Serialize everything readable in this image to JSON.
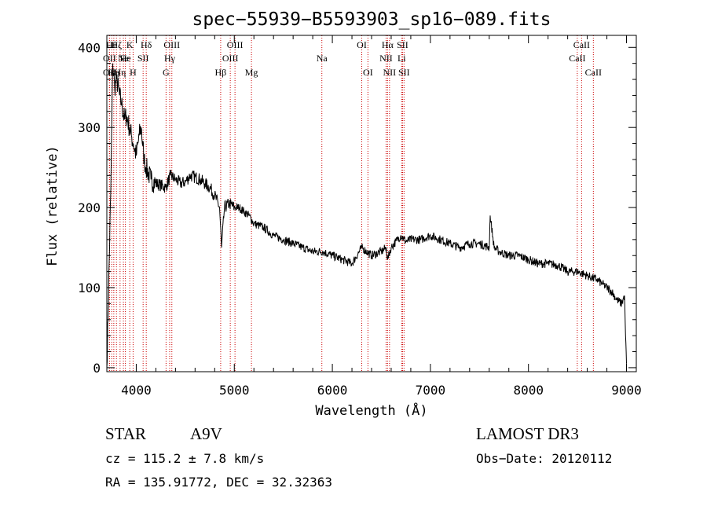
{
  "chart_data": {
    "type": "line",
    "title": "spec−55939−B5593903_sp16−089.fits",
    "xlabel": "Wavelength (Å)",
    "ylabel": "Flux (relative)",
    "xlim": [
      3700,
      9100
    ],
    "ylim": [
      -5,
      415
    ],
    "x_ticks": [
      4000,
      5000,
      6000,
      7000,
      8000,
      9000
    ],
    "y_ticks": [
      0,
      100,
      200,
      300,
      400
    ],
    "series": [
      {
        "name": "spectrum",
        "x": [
          3700,
          3740,
          3760,
          3780,
          3800,
          3830,
          3850,
          3880,
          3900,
          3930,
          3950,
          3970,
          4000,
          4030,
          4050,
          4080,
          4100,
          4150,
          4200,
          4250,
          4300,
          4350,
          4400,
          4450,
          4500,
          4550,
          4600,
          4650,
          4700,
          4750,
          4800,
          4850,
          4870,
          4900,
          4950,
          5000,
          5050,
          5100,
          5150,
          5200,
          5300,
          5400,
          5500,
          5600,
          5700,
          5800,
          5900,
          6000,
          6100,
          6200,
          6300,
          6400,
          6500,
          6550,
          6563,
          6600,
          6650,
          6700,
          6750,
          6800,
          6900,
          7000,
          7100,
          7200,
          7300,
          7400,
          7500,
          7600,
          7610,
          7650,
          7700,
          7800,
          7900,
          8000,
          8100,
          8200,
          8300,
          8400,
          8500,
          8600,
          8650,
          8700,
          8750,
          8800,
          8850,
          8900,
          8950,
          8980,
          8990,
          9000
        ],
        "y": [
          0,
          220,
          380,
          350,
          360,
          340,
          330,
          310,
          315,
          300,
          290,
          280,
          265,
          290,
          300,
          260,
          250,
          235,
          230,
          228,
          225,
          240,
          235,
          230,
          232,
          240,
          238,
          235,
          230,
          225,
          215,
          200,
          150,
          200,
          205,
          200,
          200,
          195,
          190,
          180,
          175,
          165,
          160,
          155,
          150,
          145,
          145,
          140,
          135,
          130,
          150,
          140,
          145,
          150,
          135,
          150,
          158,
          165,
          158,
          160,
          160,
          165,
          160,
          155,
          150,
          155,
          155,
          150,
          190,
          150,
          145,
          140,
          140,
          135,
          130,
          130,
          128,
          120,
          120,
          115,
          112,
          110,
          105,
          100,
          95,
          85,
          80,
          90,
          40,
          5
        ]
      }
    ],
    "line_markers": [
      {
        "x": 3727,
        "label": "OII",
        "row": 1
      },
      {
        "x": 3727,
        "label": "OII",
        "row": 2
      },
      {
        "x": 3750,
        "label": "Hθ",
        "row": 0
      },
      {
        "x": 3771,
        "label": "Hη",
        "row": 2
      },
      {
        "x": 3798,
        "label": "Hζ",
        "row": 0
      },
      {
        "x": 3835,
        "label": "Hη",
        "row": 2
      },
      {
        "x": 3869,
        "label": "Ne",
        "row": 1
      },
      {
        "x": 3889,
        "label": "He",
        "row": 1
      },
      {
        "x": 3934,
        "label": "K",
        "row": 0
      },
      {
        "x": 3968,
        "label": "H",
        "row": 2
      },
      {
        "x": 4070,
        "label": "SII",
        "row": 1
      },
      {
        "x": 4102,
        "label": "Hδ",
        "row": 0
      },
      {
        "x": 4304,
        "label": "G",
        "row": 2
      },
      {
        "x": 4341,
        "label": "Hγ",
        "row": 1
      },
      {
        "x": 4363,
        "label": "OIII",
        "row": 0
      },
      {
        "x": 4861,
        "label": "Hβ",
        "row": 2
      },
      {
        "x": 4959,
        "label": "OIII",
        "row": 1
      },
      {
        "x": 5007,
        "label": "OIII",
        "row": 0
      },
      {
        "x": 5175,
        "label": "Mg",
        "row": 2
      },
      {
        "x": 5893,
        "label": "Na",
        "row": 1
      },
      {
        "x": 6300,
        "label": "OI",
        "row": 0
      },
      {
        "x": 6363,
        "label": "OI",
        "row": 2
      },
      {
        "x": 6548,
        "label": "NII",
        "row": 1
      },
      {
        "x": 6563,
        "label": "Hα",
        "row": 0
      },
      {
        "x": 6583,
        "label": "NII",
        "row": 2
      },
      {
        "x": 6707,
        "label": "Li",
        "row": 1
      },
      {
        "x": 6716,
        "label": "SII",
        "row": 0
      },
      {
        "x": 6731,
        "label": "SII",
        "row": 2
      },
      {
        "x": 8498,
        "label": "CaII",
        "row": 1
      },
      {
        "x": 8542,
        "label": "CaII",
        "row": 0
      },
      {
        "x": 8662,
        "label": "CaII",
        "row": 2
      }
    ]
  },
  "info": {
    "object_class": "STAR",
    "subclass": "A9V",
    "survey": "LAMOST DR3",
    "redshift": "cz = 115.2 ± 7.8 km/s",
    "obs_date": "Obs−Date: 20120112",
    "coords": "RA = 135.91772, DEC =  32.32363"
  },
  "colors": {
    "spectrum": "#000000",
    "marker": "#cc0000",
    "axis": "#000000"
  }
}
